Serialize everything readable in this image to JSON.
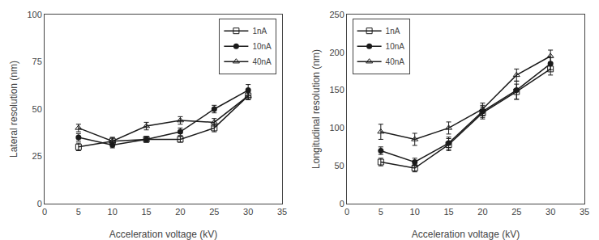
{
  "chart_data": [
    {
      "type": "line",
      "xlabel": "Acceleration voltage (kV)",
      "ylabel": "Lateral resolution (nm)",
      "x": [
        5,
        10,
        15,
        20,
        25,
        30
      ],
      "xlim": [
        0,
        35
      ],
      "xticks": [
        0,
        5,
        10,
        15,
        20,
        25,
        30,
        35
      ],
      "ylim": [
        0,
        100
      ],
      "yticks": [
        0,
        25,
        50,
        75,
        100
      ],
      "grid": false,
      "legend": "upper right",
      "series": [
        {
          "name": "1nA",
          "color": "#1a1a1a",
          "marker": "square-open",
          "values": [
            30,
            33,
            34,
            34,
            40,
            57
          ],
          "yerr": [
            2,
            2,
            1.5,
            1.5,
            2,
            2
          ]
        },
        {
          "name": "10nA",
          "color": "#1a1a1a",
          "marker": "circle",
          "values": [
            35,
            31,
            34,
            38,
            50,
            60
          ],
          "yerr": [
            2,
            1.5,
            1.5,
            2,
            2,
            3
          ]
        },
        {
          "name": "40nA",
          "color": "#1a1a1a",
          "marker": "triangle-up-open",
          "values": [
            40,
            33,
            41,
            44,
            43,
            57
          ],
          "yerr": [
            2,
            2,
            2,
            2,
            2,
            2
          ]
        }
      ]
    },
    {
      "type": "line",
      "xlabel": "Acceleration voltage (kV)",
      "ylabel": "Longitudinal resolution (nm)",
      "x": [
        5,
        10,
        15,
        20,
        25,
        30
      ],
      "xlim": [
        0,
        35
      ],
      "xticks": [
        0,
        5,
        10,
        15,
        20,
        25,
        30,
        35
      ],
      "ylim": [
        0,
        250
      ],
      "yticks": [
        0,
        50,
        100,
        150,
        200,
        250
      ],
      "grid": false,
      "legend": "upper left",
      "series": [
        {
          "name": "1nA",
          "color": "#1a1a1a",
          "marker": "square-open",
          "values": [
            55,
            47,
            78,
            120,
            148,
            178
          ],
          "yerr": [
            5,
            5,
            8,
            8,
            10,
            8
          ]
        },
        {
          "name": "10nA",
          "color": "#1a1a1a",
          "marker": "circle",
          "values": [
            70,
            55,
            80,
            122,
            150,
            185
          ],
          "yerr": [
            5,
            5,
            8,
            8,
            12,
            8
          ]
        },
        {
          "name": "40nA",
          "color": "#1a1a1a",
          "marker": "triangle-up-open",
          "values": [
            95,
            85,
            100,
            125,
            170,
            195
          ],
          "yerr": [
            10,
            8,
            8,
            8,
            8,
            8
          ]
        }
      ]
    }
  ]
}
